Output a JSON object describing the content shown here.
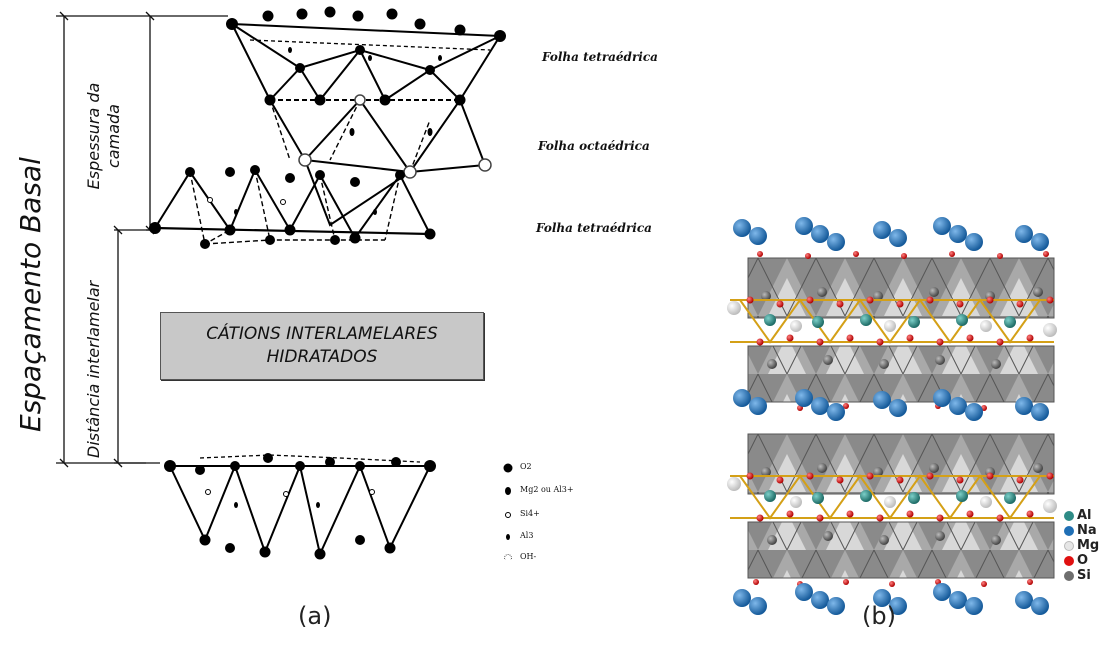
{
  "panel_a": {
    "sheet_labels": {
      "top": "Folha tetraédrica",
      "middle": "Folha octaédrica",
      "bottom": "Folha tetraédrica"
    },
    "basal_spacing_label": "Espaçamento Basal",
    "layer_thickness_label": [
      "Espessura da",
      "camada"
    ],
    "interlayer_distance_label": "Distância interlamelar",
    "cation_box": [
      "CÁTIONS INTERLAMELARES",
      "HIDRATADOS"
    ],
    "legend": [
      {
        "symbol": "filled-large",
        "label": "O2"
      },
      {
        "symbol": "filled-medium",
        "label": "Mg2   ou Al3+"
      },
      {
        "symbol": "open",
        "label": "Si4+"
      },
      {
        "symbol": "filled-small",
        "label": "Al3"
      },
      {
        "symbol": "hatched",
        "label": "OH-"
      }
    ],
    "caption": "(a)"
  },
  "panel_b": {
    "legend": [
      {
        "label": "Al",
        "color": "#2e8b86"
      },
      {
        "label": "Na",
        "color": "#1f6fb5"
      },
      {
        "label": "Mg",
        "color": "#e6e6e6"
      },
      {
        "label": "O",
        "color": "#e01010"
      },
      {
        "label": "Si",
        "color": "#6e6e6e"
      }
    ],
    "caption": "(b)"
  }
}
